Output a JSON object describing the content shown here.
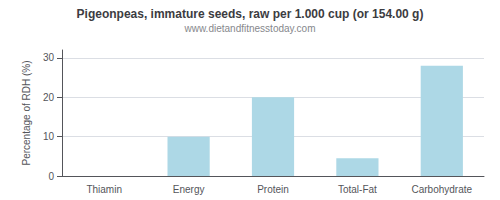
{
  "chart_data": {
    "type": "bar",
    "title": "Pigeonpeas, immature seeds, raw per 1.000 cup (or 154.00 g)",
    "subtitle": "www.dietandfitnesstoday.com",
    "categories": [
      "Thiamin",
      "Energy",
      "Protein",
      "Total-Fat",
      "Carbohydrate"
    ],
    "values": [
      0,
      10,
      20,
      4.5,
      28
    ],
    "color": "#add8e6",
    "ylabel": "Percentage of RDH (%)",
    "ylim": [
      0,
      32
    ],
    "yticks": [
      0,
      10,
      20,
      30
    ],
    "grid": true
  }
}
